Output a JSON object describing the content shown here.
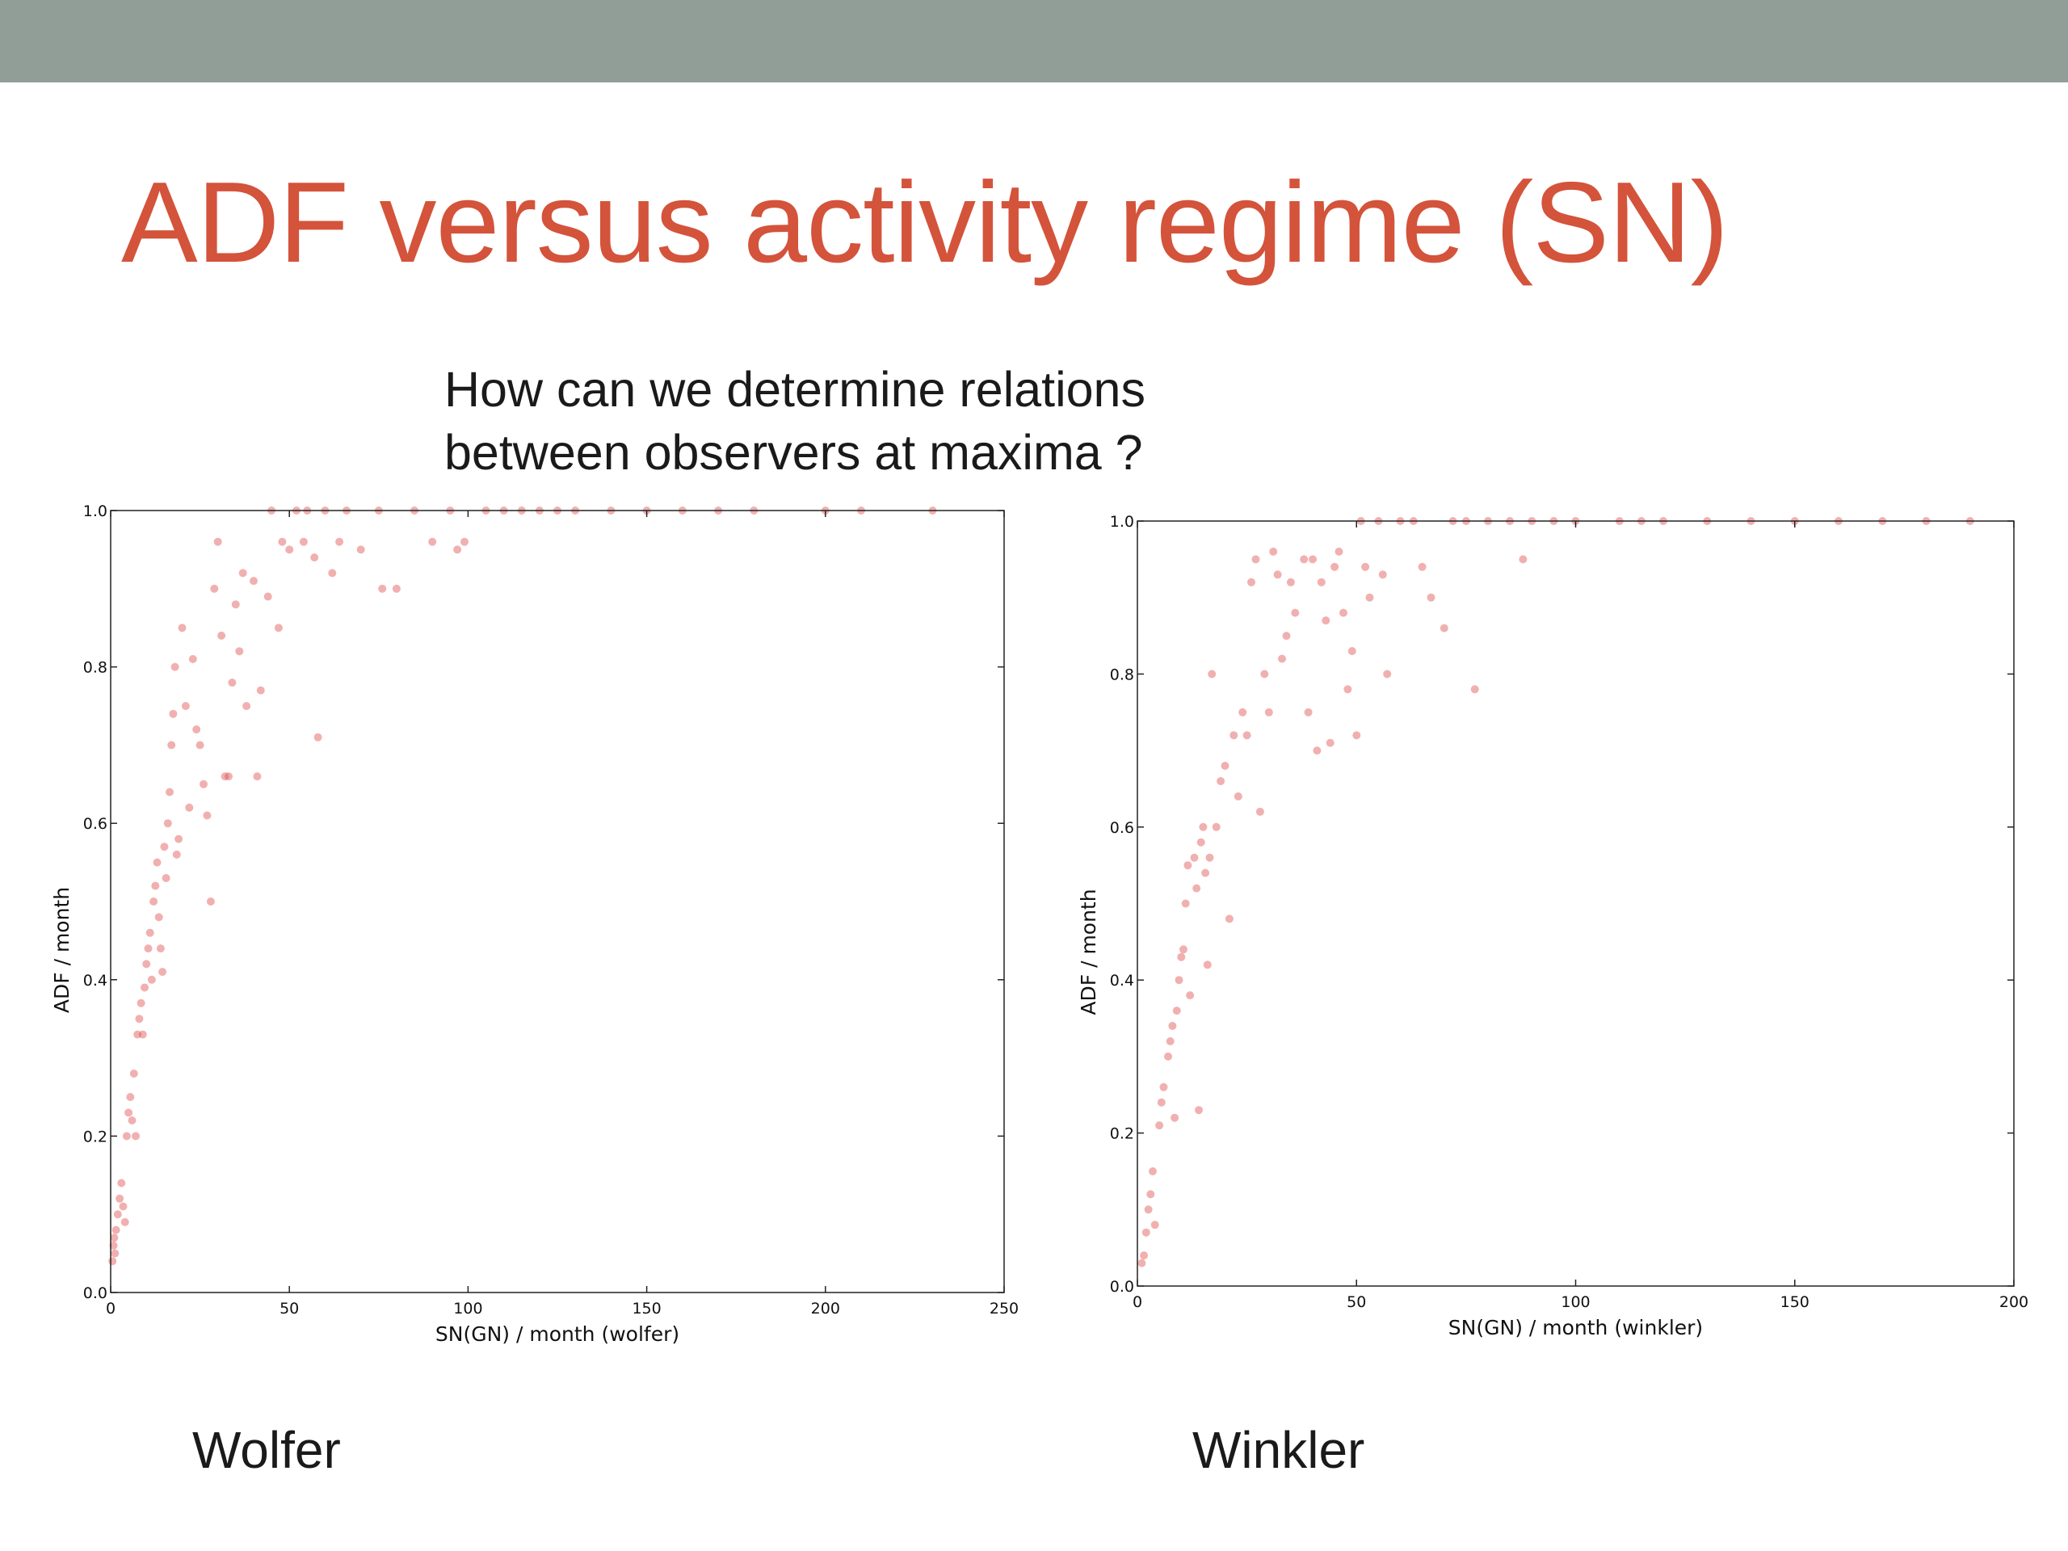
{
  "slide": {
    "title": "ADF versus activity regime (SN)",
    "question_line1": "How can we determine relations",
    "question_line2": "between observers at maxima ?",
    "left_caption": "Wolfer",
    "right_caption": "Winkler"
  },
  "colors": {
    "top_bar": "#909e97",
    "title": "#d4533b",
    "points": "#e05050"
  },
  "chart_data": [
    {
      "type": "scatter",
      "title": "",
      "xlabel": "SN(GN) / month (wolfer)",
      "ylabel": "ADF / month",
      "xlim": [
        0,
        250
      ],
      "ylim": [
        0.0,
        1.0
      ],
      "xticks": [
        "0",
        "50",
        "100",
        "150",
        "200",
        "250"
      ],
      "yticks": [
        "0.0",
        "0.2",
        "0.4",
        "0.6",
        "0.8",
        "1.0"
      ],
      "grid": false,
      "points": [
        [
          0.5,
          0.04
        ],
        [
          0.8,
          0.06
        ],
        [
          1,
          0.07
        ],
        [
          1.2,
          0.05
        ],
        [
          1.5,
          0.08
        ],
        [
          2,
          0.1
        ],
        [
          2.5,
          0.12
        ],
        [
          3,
          0.14
        ],
        [
          3.5,
          0.11
        ],
        [
          4,
          0.09
        ],
        [
          4.5,
          0.2
        ],
        [
          5,
          0.23
        ],
        [
          5.5,
          0.25
        ],
        [
          6,
          0.22
        ],
        [
          6.5,
          0.28
        ],
        [
          7,
          0.2
        ],
        [
          7.5,
          0.33
        ],
        [
          8,
          0.35
        ],
        [
          8.5,
          0.37
        ],
        [
          9,
          0.33
        ],
        [
          9.5,
          0.39
        ],
        [
          10,
          0.42
        ],
        [
          10.5,
          0.44
        ],
        [
          11,
          0.46
        ],
        [
          11.5,
          0.4
        ],
        [
          12,
          0.5
        ],
        [
          12.5,
          0.52
        ],
        [
          13,
          0.55
        ],
        [
          13.5,
          0.48
        ],
        [
          14,
          0.44
        ],
        [
          14.5,
          0.41
        ],
        [
          15,
          0.57
        ],
        [
          15.5,
          0.53
        ],
        [
          16,
          0.6
        ],
        [
          16.5,
          0.64
        ],
        [
          17,
          0.7
        ],
        [
          17.5,
          0.74
        ],
        [
          18,
          0.8
        ],
        [
          18.5,
          0.56
        ],
        [
          19,
          0.58
        ],
        [
          20,
          0.85
        ],
        [
          21,
          0.75
        ],
        [
          22,
          0.62
        ],
        [
          23,
          0.81
        ],
        [
          24,
          0.72
        ],
        [
          25,
          0.7
        ],
        [
          26,
          0.65
        ],
        [
          27,
          0.61
        ],
        [
          28,
          0.5
        ],
        [
          29,
          0.9
        ],
        [
          30,
          0.96
        ],
        [
          31,
          0.84
        ],
        [
          32,
          0.66
        ],
        [
          33,
          0.66
        ],
        [
          34,
          0.78
        ],
        [
          35,
          0.88
        ],
        [
          36,
          0.82
        ],
        [
          37,
          0.92
        ],
        [
          38,
          0.75
        ],
        [
          40,
          0.91
        ],
        [
          41,
          0.66
        ],
        [
          42,
          0.77
        ],
        [
          44,
          0.89
        ],
        [
          45,
          1.0
        ],
        [
          47,
          0.85
        ],
        [
          48,
          0.96
        ],
        [
          50,
          0.95
        ],
        [
          52,
          1.0
        ],
        [
          54,
          0.96
        ],
        [
          55,
          1.0
        ],
        [
          57,
          0.94
        ],
        [
          58,
          0.71
        ],
        [
          60,
          1.0
        ],
        [
          62,
          0.92
        ],
        [
          64,
          0.96
        ],
        [
          66,
          1.0
        ],
        [
          70,
          0.95
        ],
        [
          75,
          1.0
        ],
        [
          76,
          0.9
        ],
        [
          80,
          0.9
        ],
        [
          85,
          1.0
        ],
        [
          90,
          0.96
        ],
        [
          95,
          1.0
        ],
        [
          97,
          0.95
        ],
        [
          99,
          0.96
        ],
        [
          105,
          1.0
        ],
        [
          110,
          1.0
        ],
        [
          115,
          1.0
        ],
        [
          120,
          1.0
        ],
        [
          125,
          1.0
        ],
        [
          130,
          1.0
        ],
        [
          140,
          1.0
        ],
        [
          150,
          1.0
        ],
        [
          160,
          1.0
        ],
        [
          170,
          1.0
        ],
        [
          180,
          1.0
        ],
        [
          200,
          1.0
        ],
        [
          210,
          1.0
        ],
        [
          230,
          1.0
        ]
      ]
    },
    {
      "type": "scatter",
      "title": "",
      "xlabel": "SN(GN) / month (winkler)",
      "ylabel": "ADF / month",
      "xlim": [
        0,
        200
      ],
      "ylim": [
        0.0,
        1.0
      ],
      "xticks": [
        "0",
        "50",
        "100",
        "150",
        "200"
      ],
      "yticks": [
        "0.0",
        "0.2",
        "0.4",
        "0.6",
        "0.8",
        "1.0"
      ],
      "grid": false,
      "points": [
        [
          1,
          0.03
        ],
        [
          1.5,
          0.04
        ],
        [
          2,
          0.07
        ],
        [
          2.5,
          0.1
        ],
        [
          3,
          0.12
        ],
        [
          3.5,
          0.15
        ],
        [
          4,
          0.08
        ],
        [
          5,
          0.21
        ],
        [
          5.5,
          0.24
        ],
        [
          6,
          0.26
        ],
        [
          7,
          0.3
        ],
        [
          7.5,
          0.32
        ],
        [
          8,
          0.34
        ],
        [
          8.5,
          0.22
        ],
        [
          9,
          0.36
        ],
        [
          9.5,
          0.4
        ],
        [
          10,
          0.43
        ],
        [
          10.5,
          0.44
        ],
        [
          11,
          0.5
        ],
        [
          11.5,
          0.55
        ],
        [
          12,
          0.38
        ],
        [
          13,
          0.56
        ],
        [
          13.5,
          0.52
        ],
        [
          14,
          0.23
        ],
        [
          14.5,
          0.58
        ],
        [
          15,
          0.6
        ],
        [
          15.5,
          0.54
        ],
        [
          16,
          0.42
        ],
        [
          16.5,
          0.56
        ],
        [
          17,
          0.8
        ],
        [
          18,
          0.6
        ],
        [
          19,
          0.66
        ],
        [
          20,
          0.68
        ],
        [
          21,
          0.48
        ],
        [
          22,
          0.72
        ],
        [
          23,
          0.64
        ],
        [
          24,
          0.75
        ],
        [
          25,
          0.72
        ],
        [
          26,
          0.92
        ],
        [
          27,
          0.95
        ],
        [
          28,
          0.62
        ],
        [
          29,
          0.8
        ],
        [
          30,
          0.75
        ],
        [
          31,
          0.96
        ],
        [
          32,
          0.93
        ],
        [
          33,
          0.82
        ],
        [
          34,
          0.85
        ],
        [
          35,
          0.92
        ],
        [
          36,
          0.88
        ],
        [
          38,
          0.95
        ],
        [
          39,
          0.75
        ],
        [
          40,
          0.95
        ],
        [
          41,
          0.7
        ],
        [
          42,
          0.92
        ],
        [
          43,
          0.87
        ],
        [
          44,
          0.71
        ],
        [
          45,
          0.94
        ],
        [
          46,
          0.96
        ],
        [
          47,
          0.88
        ],
        [
          48,
          0.78
        ],
        [
          49,
          0.83
        ],
        [
          50,
          0.72
        ],
        [
          51,
          1.0
        ],
        [
          52,
          0.94
        ],
        [
          53,
          0.9
        ],
        [
          55,
          1.0
        ],
        [
          56,
          0.93
        ],
        [
          57,
          0.8
        ],
        [
          60,
          1.0
        ],
        [
          63,
          1.0
        ],
        [
          65,
          0.94
        ],
        [
          67,
          0.9
        ],
        [
          70,
          0.86
        ],
        [
          72,
          1.0
        ],
        [
          75,
          1.0
        ],
        [
          77,
          0.78
        ],
        [
          80,
          1.0
        ],
        [
          85,
          1.0
        ],
        [
          88,
          0.95
        ],
        [
          90,
          1.0
        ],
        [
          95,
          1.0
        ],
        [
          100,
          1.0
        ],
        [
          110,
          1.0
        ],
        [
          115,
          1.0
        ],
        [
          120,
          1.0
        ],
        [
          130,
          1.0
        ],
        [
          140,
          1.0
        ],
        [
          150,
          1.0
        ],
        [
          160,
          1.0
        ],
        [
          170,
          1.0
        ],
        [
          180,
          1.0
        ],
        [
          190,
          1.0
        ]
      ]
    }
  ]
}
